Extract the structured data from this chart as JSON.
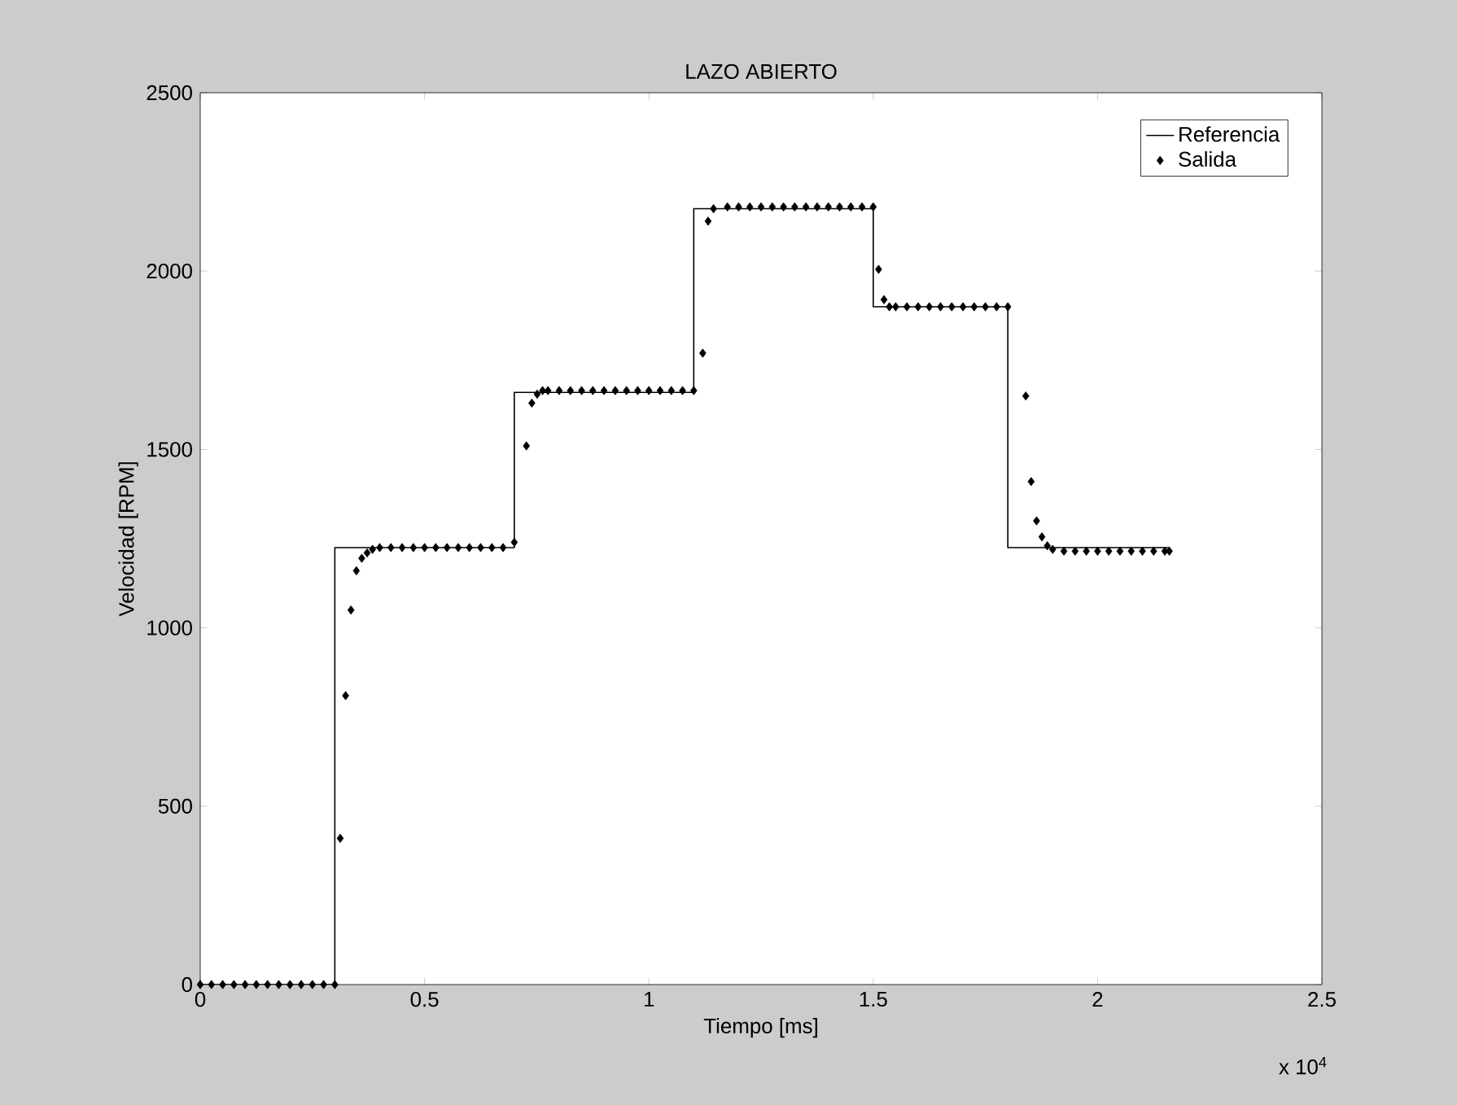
{
  "chart_data": {
    "type": "step",
    "title": "LAZO ABIERTO",
    "xlabel": "Tiempo [ms]",
    "ylabel": "Velocidad [RPM]",
    "annotations": [
      "x 10$^{4}$"
    ],
    "xlim": [
      0,
      2.5
    ],
    "ylim": [
      0,
      2500
    ],
    "xticks": [
      0,
      0.5,
      1,
      1.5,
      2,
      2.5
    ],
    "yticks": [
      0,
      500,
      1000,
      1500,
      2000,
      2500
    ],
    "legend": "top right",
    "grid": false,
    "series": [
      {
        "name": "Referencia",
        "color": "#000000",
        "line_style": "solid",
        "marker": "none",
        "x": [
          0,
          0.3,
          0.7,
          1.1,
          1.5,
          1.8,
          2.16
        ],
        "values": [
          0,
          1225,
          1660,
          2175,
          1900,
          1225,
          1225
        ]
      },
      {
        "name": "Salida",
        "type": "scatter",
        "color": "#000000",
        "marker": "diamond",
        "x": [
          0,
          0.025,
          0.05,
          0.075,
          0.1,
          0.125,
          0.15,
          0.175,
          0.2,
          0.225,
          0.25,
          0.275,
          0.3,
          0.312,
          0.324,
          0.336,
          0.348,
          0.36,
          0.372,
          0.384,
          0.4,
          0.425,
          0.45,
          0.475,
          0.5,
          0.525,
          0.55,
          0.575,
          0.6,
          0.625,
          0.65,
          0.675,
          0.7,
          0.727,
          0.739,
          0.751,
          0.763,
          0.775,
          0.8,
          0.825,
          0.85,
          0.875,
          0.9,
          0.925,
          0.95,
          0.975,
          1.0,
          1.025,
          1.05,
          1.075,
          1.1,
          1.12,
          1.132,
          1.144,
          1.175,
          1.2,
          1.225,
          1.25,
          1.275,
          1.3,
          1.325,
          1.35,
          1.375,
          1.4,
          1.425,
          1.45,
          1.475,
          1.5,
          1.512,
          1.524,
          1.536,
          1.55,
          1.575,
          1.6,
          1.625,
          1.65,
          1.675,
          1.7,
          1.725,
          1.75,
          1.775,
          1.8,
          1.84,
          1.852,
          1.864,
          1.876,
          1.888,
          1.9,
          1.925,
          1.95,
          1.975,
          2.0,
          2.025,
          2.05,
          2.075,
          2.1,
          2.125,
          2.15,
          2.16
        ],
        "values": [
          0,
          0,
          0,
          0,
          0,
          0,
          0,
          0,
          0,
          0,
          0,
          0,
          0,
          410,
          810,
          1050,
          1160,
          1195,
          1210,
          1220,
          1225,
          1225,
          1225,
          1225,
          1225,
          1225,
          1225,
          1225,
          1225,
          1225,
          1225,
          1225,
          1240,
          1510,
          1630,
          1655,
          1665,
          1665,
          1665,
          1665,
          1665,
          1665,
          1665,
          1665,
          1665,
          1665,
          1665,
          1665,
          1665,
          1665,
          1665,
          1770,
          2140,
          2175,
          2180,
          2180,
          2180,
          2180,
          2180,
          2180,
          2180,
          2180,
          2180,
          2180,
          2180,
          2180,
          2180,
          2180,
          2005,
          1920,
          1900,
          1900,
          1900,
          1900,
          1900,
          1900,
          1900,
          1900,
          1900,
          1900,
          1900,
          1900,
          1650,
          1410,
          1300,
          1255,
          1230,
          1220,
          1215,
          1215,
          1215,
          1215,
          1215,
          1215,
          1215,
          1215,
          1215,
          1215,
          1215
        ]
      }
    ]
  }
}
